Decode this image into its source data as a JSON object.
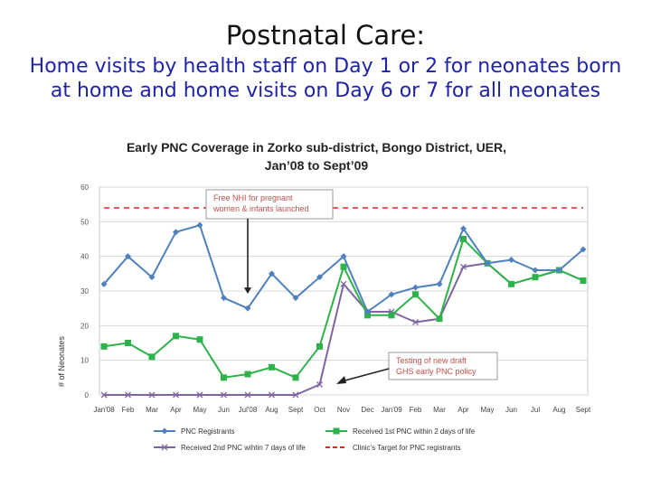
{
  "slide": {
    "title": "Postnatal Care:",
    "subtitle_line1": "Home visits by health staff on Day 1 or 2 for neonates born",
    "subtitle_line2": "at home and home visits on Day 6 or 7 for all neonates"
  },
  "chart_data": {
    "type": "line",
    "title_line1": "Early PNC Coverage in Zorko sub-district, Bongo District, UER,",
    "title_line2": "Jan’08 to Sept’09",
    "xlabel": "",
    "ylabel": "# of Neonates",
    "ylim": [
      0,
      60
    ],
    "yticks": [
      0,
      10,
      20,
      30,
      40,
      50,
      60
    ],
    "grid": true,
    "legend_position": "bottom",
    "categories": [
      "Jan'08",
      "Feb",
      "Mar",
      "Apr",
      "May",
      "Jun",
      "Jul'08",
      "Aug",
      "Sept",
      "Oct",
      "Nov",
      "Dec",
      "Jan'09",
      "Feb",
      "Mar",
      "Apr",
      "May",
      "Jun",
      "Jul",
      "Aug",
      "Sept"
    ],
    "series": [
      {
        "name": "PNC Registrants",
        "color": "#4f81bd",
        "marker": "diamond",
        "values": [
          32,
          40,
          34,
          47,
          49,
          28,
          25,
          35,
          28,
          34,
          40,
          24,
          29,
          31,
          32,
          48,
          38,
          39,
          36,
          36,
          42
        ]
      },
      {
        "name": "Received 1st PNC within 2 days of life",
        "color": "#2db34a",
        "marker": "square",
        "values": [
          14,
          15,
          11,
          17,
          16,
          5,
          6,
          8,
          5,
          14,
          37,
          23,
          23,
          29,
          22,
          45,
          38,
          32,
          34,
          36,
          33
        ]
      },
      {
        "name": "Received 2nd PNC wihtin 7 days of life",
        "color": "#8064a2",
        "marker": "x",
        "values": [
          0,
          0,
          0,
          0,
          0,
          0,
          0,
          0,
          0,
          3,
          32,
          24,
          24,
          21,
          22,
          37,
          38,
          32,
          34,
          36,
          33
        ]
      },
      {
        "name": "Clinic's Target for PNC registrants",
        "color": "#e8251c",
        "marker": "none",
        "dashed": true,
        "values": [
          54,
          54,
          54,
          54,
          54,
          54,
          54,
          54,
          54,
          54,
          54,
          54,
          54,
          54,
          54,
          54,
          54,
          54,
          54,
          54,
          54
        ]
      }
    ],
    "annotations": [
      {
        "text_lines": [
          "Free NHI for pregnant",
          "women & infants launched"
        ],
        "points_to": "Jul'08"
      },
      {
        "text_lines": [
          "Testing of new draft",
          "GHS early PNC policy"
        ],
        "points_to": "Nov"
      }
    ]
  }
}
